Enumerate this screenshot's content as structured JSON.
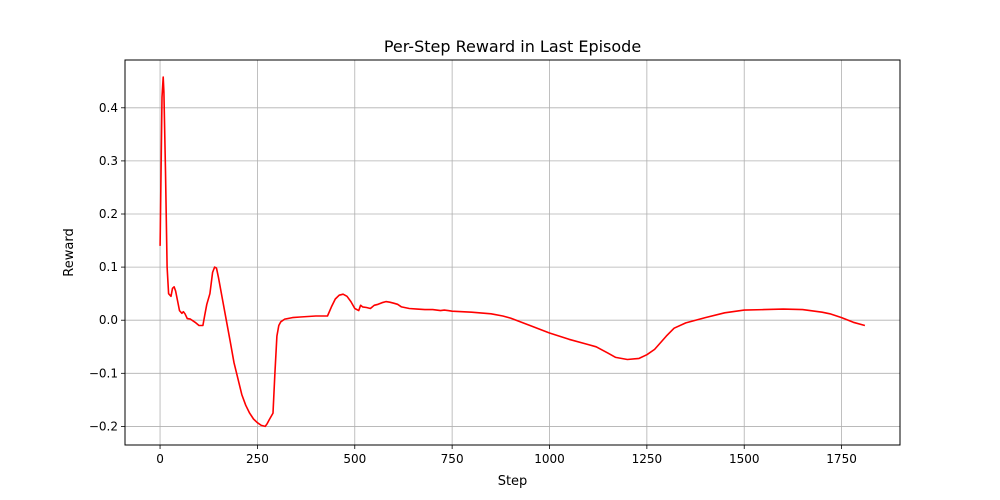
{
  "chart_data": {
    "type": "line",
    "title": "Per-Step Reward in Last Episode",
    "xlabel": "Step",
    "ylabel": "Reward",
    "xlim": [
      -90,
      1900
    ],
    "ylim": [
      -0.235,
      0.49
    ],
    "xticks": [
      0,
      250,
      500,
      750,
      1000,
      1250,
      1500,
      1750
    ],
    "yticks": [
      -0.2,
      -0.1,
      0.0,
      0.1,
      0.2,
      0.3,
      0.4
    ],
    "xtick_labels": [
      "0",
      "250",
      "500",
      "750",
      "1000",
      "1250",
      "1500",
      "1750"
    ],
    "ytick_labels": [
      "−0.2",
      "−0.1",
      "0.0",
      "0.1",
      "0.2",
      "0.3",
      "0.4"
    ],
    "grid": true,
    "series": [
      {
        "color": "#ff0000",
        "x": [
          0,
          5,
          8,
          10,
          14,
          18,
          22,
          28,
          32,
          36,
          40,
          44,
          50,
          56,
          60,
          64,
          70,
          78,
          90,
          100,
          110,
          115,
          120,
          128,
          135,
          140,
          145,
          150,
          160,
          170,
          180,
          190,
          200,
          210,
          220,
          230,
          240,
          250,
          260,
          270,
          275,
          280,
          290,
          295,
          300,
          305,
          310,
          320,
          340,
          360,
          380,
          400,
          430,
          440,
          450,
          460,
          470,
          480,
          490,
          500,
          510,
          515,
          520,
          530,
          540,
          550,
          560,
          570,
          580,
          590,
          600,
          610,
          620,
          640,
          660,
          680,
          700,
          720,
          730,
          740,
          750,
          800,
          850,
          880,
          900,
          950,
          1000,
          1050,
          1100,
          1120,
          1150,
          1170,
          1200,
          1230,
          1250,
          1270,
          1300,
          1320,
          1350,
          1400,
          1450,
          1500,
          1550,
          1600,
          1650,
          1700,
          1720,
          1750,
          1780,
          1810
        ],
        "y": [
          0.14,
          0.42,
          0.458,
          0.43,
          0.28,
          0.1,
          0.05,
          0.045,
          0.06,
          0.063,
          0.055,
          0.04,
          0.018,
          0.013,
          0.016,
          0.012,
          0.003,
          0.002,
          -0.004,
          -0.01,
          -0.01,
          0.01,
          0.03,
          0.05,
          0.09,
          0.1,
          0.098,
          0.08,
          0.04,
          0.0,
          -0.04,
          -0.08,
          -0.11,
          -0.14,
          -0.16,
          -0.175,
          -0.186,
          -0.193,
          -0.198,
          -0.2,
          -0.195,
          -0.188,
          -0.175,
          -0.1,
          -0.03,
          -0.01,
          -0.003,
          0.002,
          0.005,
          0.006,
          0.007,
          0.008,
          0.008,
          0.025,
          0.04,
          0.047,
          0.049,
          0.045,
          0.035,
          0.022,
          0.018,
          0.028,
          0.025,
          0.024,
          0.022,
          0.028,
          0.03,
          0.033,
          0.035,
          0.034,
          0.032,
          0.03,
          0.025,
          0.022,
          0.021,
          0.02,
          0.02,
          0.018,
          0.019,
          0.018,
          0.017,
          0.015,
          0.012,
          0.008,
          0.004,
          -0.01,
          -0.024,
          -0.036,
          -0.046,
          -0.05,
          -0.062,
          -0.07,
          -0.074,
          -0.072,
          -0.065,
          -0.055,
          -0.03,
          -0.015,
          -0.005,
          0.005,
          0.014,
          0.019,
          0.02,
          0.021,
          0.02,
          0.015,
          0.012,
          0.005,
          -0.004,
          -0.01
        ]
      }
    ]
  }
}
